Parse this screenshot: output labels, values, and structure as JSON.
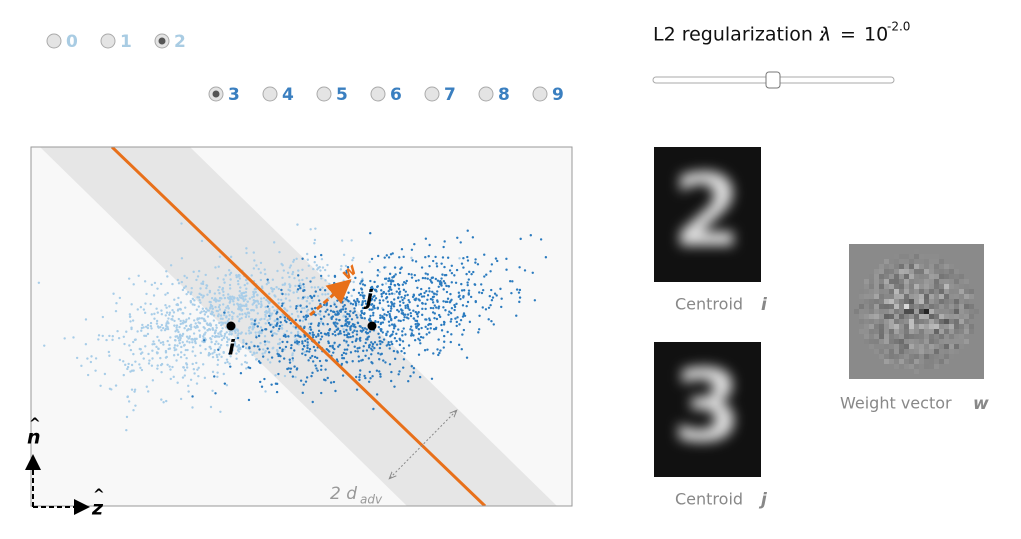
{
  "digits_i": {
    "options": [
      "0",
      "1",
      "2"
    ],
    "selected": 2
  },
  "digits_j": {
    "options": [
      "3",
      "4",
      "5",
      "6",
      "7",
      "8",
      "9"
    ],
    "selected": 0
  },
  "slider": {
    "label": "L2 regularization :",
    "symbol": "λ",
    "equals": "=",
    "base": "10",
    "exponent": "-2.0"
  },
  "plot": {
    "point_i": "i",
    "point_j": "j",
    "vector": "w",
    "axis_n": "n",
    "axis_z": "z",
    "margin": "2 d",
    "margin_sub": "adv"
  },
  "images": {
    "centroid_i": {
      "caption": "Centroid",
      "var": "i",
      "digit": "2"
    },
    "centroid_j": {
      "caption": "Centroid",
      "var": "j",
      "digit": "3"
    },
    "weight": {
      "caption": "Weight vector",
      "var": "w"
    }
  }
}
